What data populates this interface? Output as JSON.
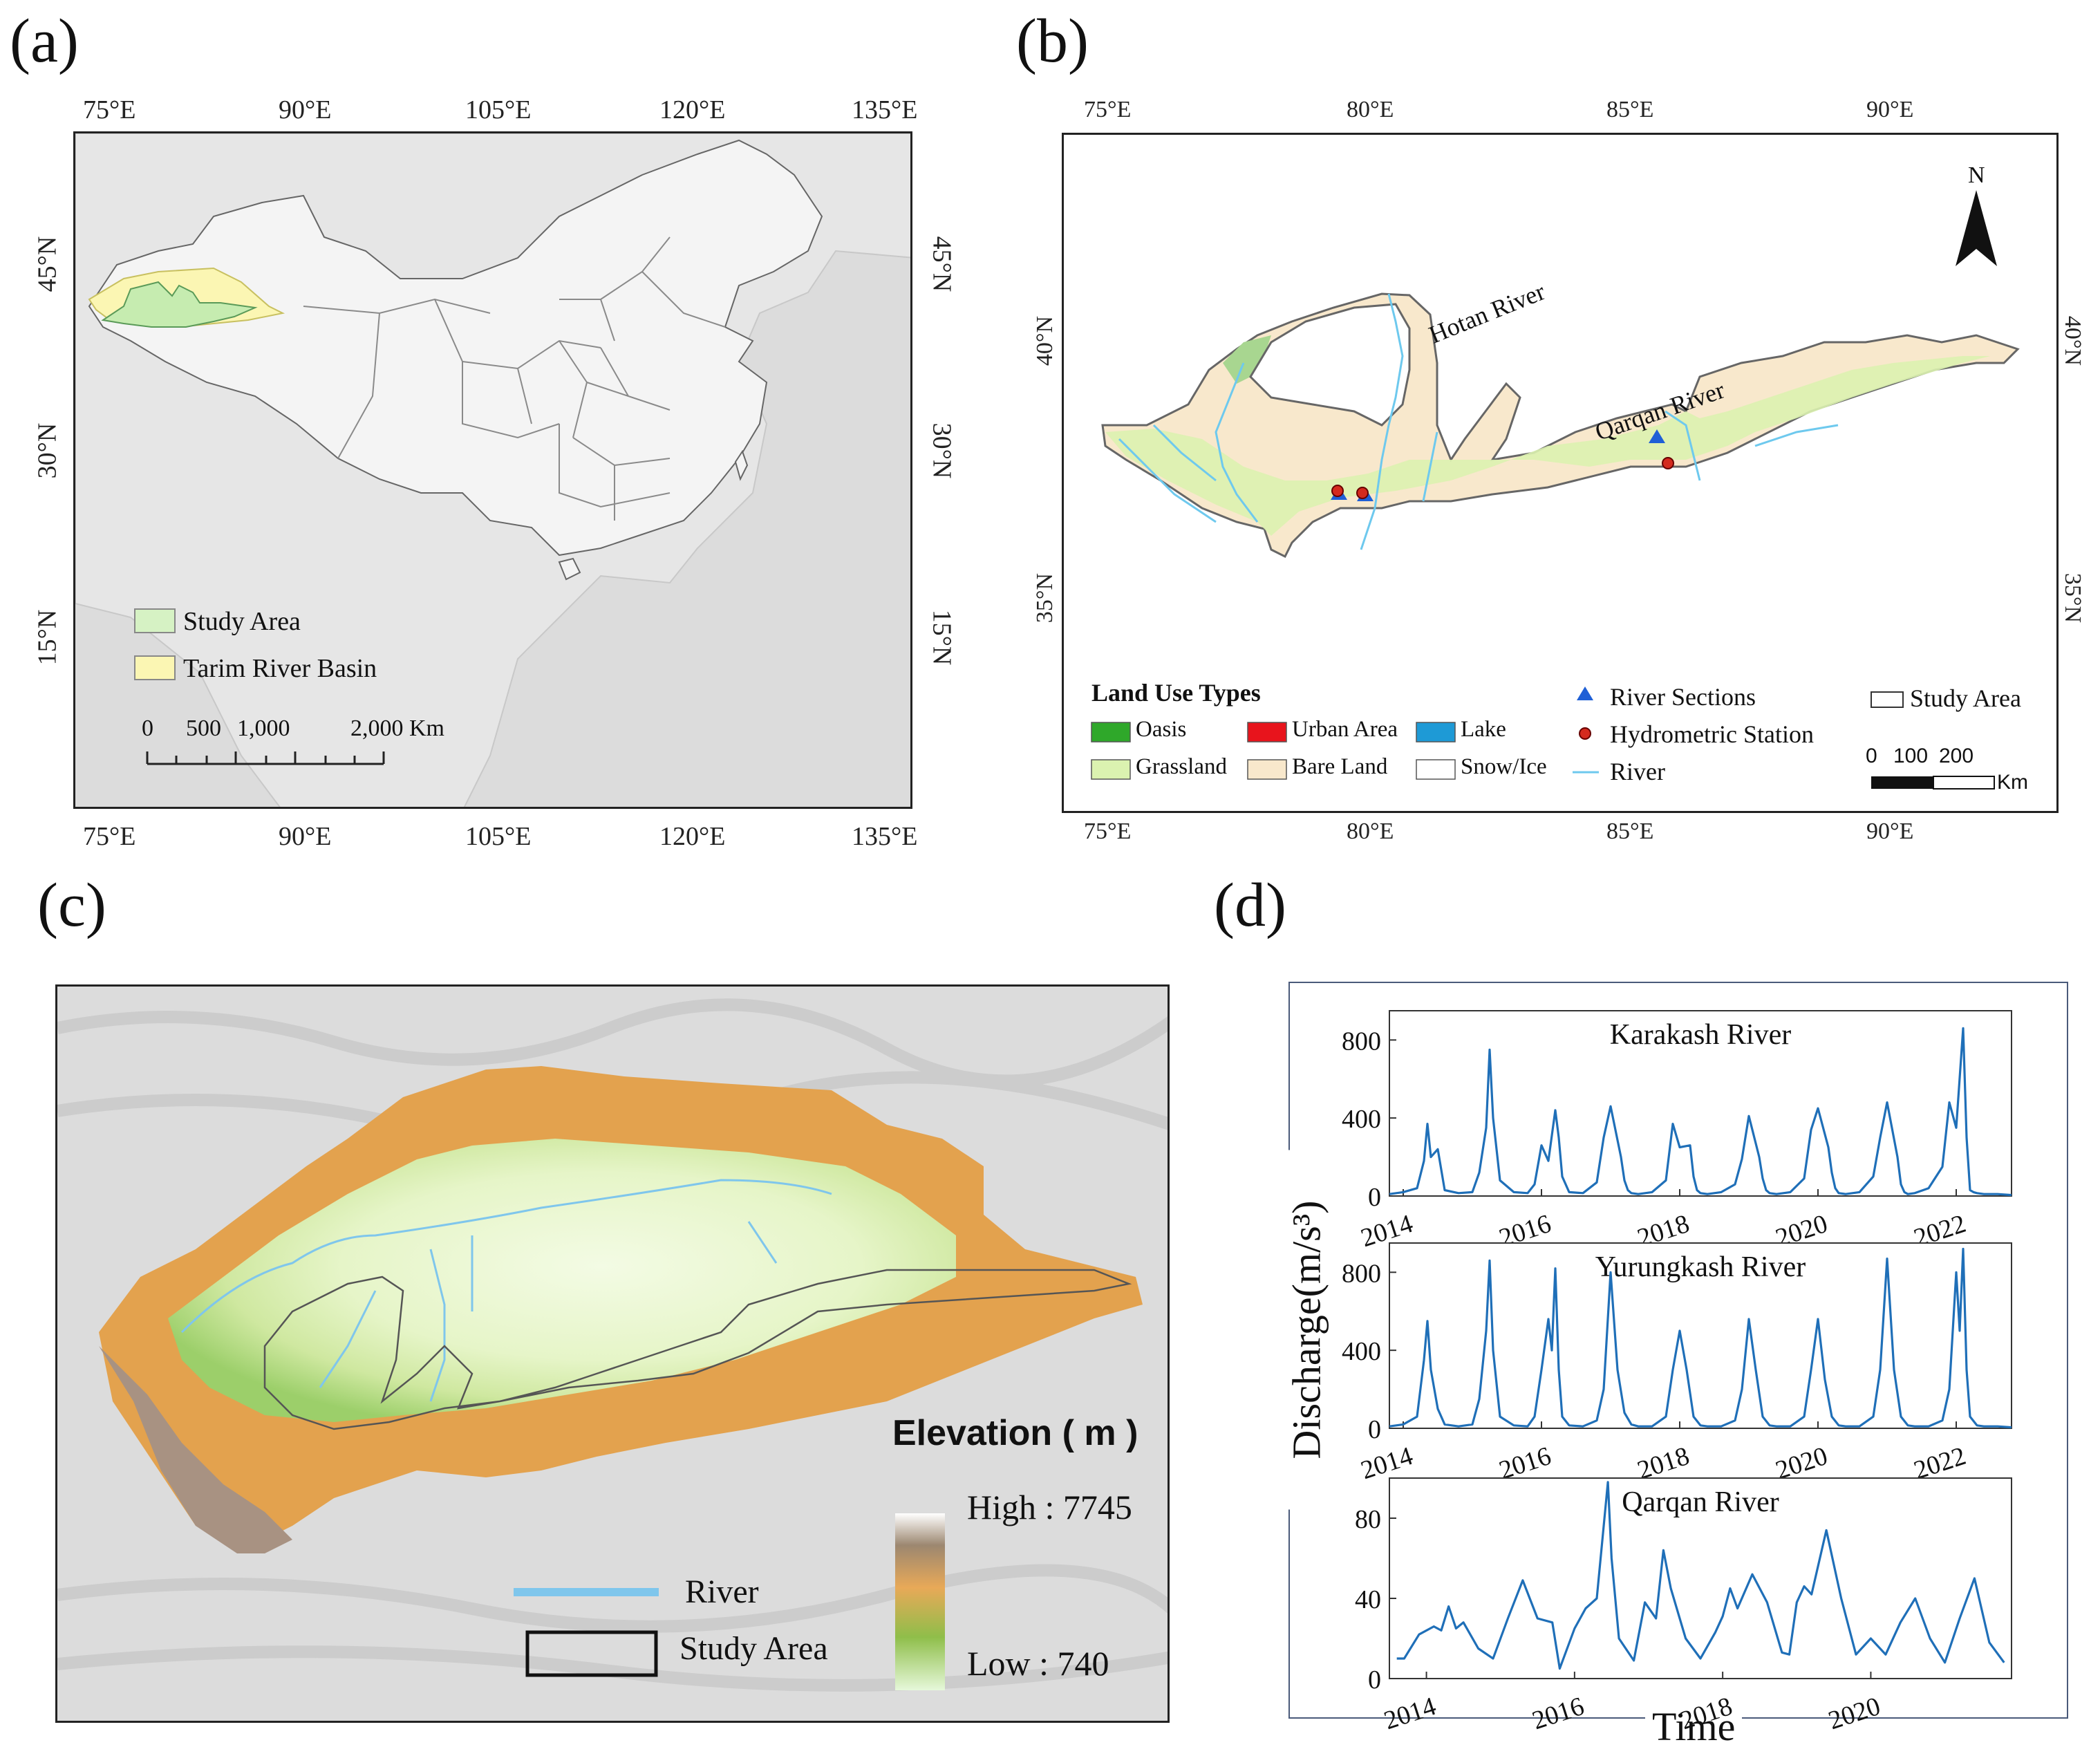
{
  "panels": {
    "a": {
      "label": "(a)",
      "lon_ticks": [
        "75°E",
        "90°E",
        "105°E",
        "120°E",
        "135°E"
      ],
      "lat_ticks": [
        "45°N",
        "30°N",
        "15°N"
      ],
      "legend": {
        "study_area": "Study Area",
        "tarim_basin": "Tarim River Basin"
      },
      "scalebar": {
        "labels": [
          "0",
          "500",
          "1,000",
          "2,000 Km"
        ]
      },
      "colors": {
        "study_area": "#d6f2c4",
        "tarim_basin": "#fbf6b3",
        "ocean": "#dcdcdc",
        "china": "#f2f2f2"
      }
    },
    "b": {
      "label": "(b)",
      "lon_ticks": [
        "75°E",
        "80°E",
        "85°E",
        "90°E"
      ],
      "lat_ticks": [
        "40°N",
        "35°N"
      ],
      "north": "N",
      "river_labels": [
        "Hotan River",
        "Qarqan River"
      ],
      "legend": {
        "title": "Land Use Types",
        "items": [
          {
            "name": "Oasis",
            "color": "#2fa82a"
          },
          {
            "name": "Urban Area",
            "color": "#e8141c"
          },
          {
            "name": "Lake",
            "color": "#1e9ad6"
          },
          {
            "name": "Grassland",
            "color": "#dbf2b0"
          },
          {
            "name": "Bare Land",
            "color": "#f8e8cc"
          },
          {
            "name": "Snow/Ice",
            "color": "#ffffff"
          }
        ],
        "river_sections": "River Sections",
        "hydrometric_station": "Hydrometric Station",
        "river": "River",
        "study_area": "Study Area"
      },
      "scalebar": {
        "labels": [
          "0",
          "100",
          "200"
        ],
        "unit": "Km"
      }
    },
    "c": {
      "label": "(c)",
      "elevation_title": "Elevation ( m )",
      "high": "High : 7745",
      "low": "Low : 740",
      "legend": {
        "river": "River",
        "study_area": "Study Area"
      }
    },
    "d": {
      "label": "(d)",
      "ylabel": "Discharge(m/s³)",
      "xlabel": "Time"
    }
  },
  "chart_data": [
    {
      "type": "line",
      "title": "Karakash River",
      "xlabel": "Time",
      "ylabel": "Discharge(m/s³)",
      "x_ticks": [
        "2014",
        "2016",
        "2018",
        "2020",
        "2022"
      ],
      "y_ticks": [
        0,
        400,
        800
      ],
      "ylim": [
        0,
        950
      ],
      "xlim": [
        2013.8,
        2022.8
      ],
      "series": [
        {
          "name": "Karakash River",
          "color": "#1f6fb8",
          "x": [
            2013.8,
            2014.0,
            2014.2,
            2014.3,
            2014.35,
            2014.4,
            2014.5,
            2014.6,
            2014.8,
            2015.0,
            2015.1,
            2015.2,
            2015.25,
            2015.3,
            2015.4,
            2015.6,
            2015.8,
            2015.9,
            2016.0,
            2016.1,
            2016.2,
            2016.25,
            2016.3,
            2016.4,
            2016.6,
            2016.8,
            2016.9,
            2017.0,
            2017.15,
            2017.2,
            2017.25,
            2017.3,
            2017.4,
            2017.6,
            2017.8,
            2017.9,
            2018.0,
            2018.15,
            2018.2,
            2018.25,
            2018.3,
            2018.4,
            2018.6,
            2018.8,
            2018.9,
            2019.0,
            2019.15,
            2019.2,
            2019.25,
            2019.3,
            2019.4,
            2019.6,
            2019.8,
            2019.9,
            2020.0,
            2020.15,
            2020.2,
            2020.25,
            2020.3,
            2020.4,
            2020.6,
            2020.8,
            2020.9,
            2021.0,
            2021.15,
            2021.2,
            2021.25,
            2021.3,
            2021.4,
            2021.6,
            2021.8,
            2021.9,
            2022.0,
            2022.1,
            2022.15,
            2022.2,
            2022.25,
            2022.3,
            2022.4,
            2022.6,
            2022.8
          ],
          "values": [
            10,
            20,
            40,
            180,
            370,
            200,
            240,
            30,
            15,
            20,
            120,
            350,
            750,
            400,
            80,
            20,
            15,
            60,
            260,
            180,
            440,
            300,
            100,
            20,
            15,
            70,
            300,
            460,
            200,
            80,
            30,
            15,
            10,
            20,
            80,
            370,
            250,
            260,
            100,
            30,
            15,
            10,
            20,
            60,
            190,
            410,
            200,
            90,
            30,
            15,
            10,
            20,
            90,
            340,
            450,
            250,
            120,
            40,
            15,
            10,
            20,
            100,
            300,
            480,
            200,
            60,
            20,
            10,
            15,
            40,
            150,
            480,
            350,
            860,
            300,
            30,
            20,
            15,
            10,
            10,
            5
          ]
        }
      ]
    },
    {
      "type": "line",
      "title": "Yurungkash River",
      "xlabel": "Time",
      "ylabel": "Discharge(m/s³)",
      "x_ticks": [
        "2014",
        "2016",
        "2018",
        "2020",
        "2022"
      ],
      "y_ticks": [
        0,
        400,
        800
      ],
      "ylim": [
        0,
        950
      ],
      "xlim": [
        2013.8,
        2022.8
      ],
      "series": [
        {
          "name": "Yurungkash River",
          "color": "#1f6fb8",
          "x": [
            2013.8,
            2014.0,
            2014.2,
            2014.3,
            2014.35,
            2014.4,
            2014.5,
            2014.6,
            2014.8,
            2015.0,
            2015.1,
            2015.2,
            2015.25,
            2015.3,
            2015.4,
            2015.6,
            2015.8,
            2015.9,
            2016.0,
            2016.1,
            2016.15,
            2016.2,
            2016.25,
            2016.3,
            2016.4,
            2016.6,
            2016.8,
            2016.9,
            2017.0,
            2017.1,
            2017.2,
            2017.3,
            2017.4,
            2017.6,
            2017.8,
            2017.9,
            2018.0,
            2018.1,
            2018.2,
            2018.3,
            2018.4,
            2018.6,
            2018.8,
            2018.9,
            2019.0,
            2019.1,
            2019.2,
            2019.3,
            2019.4,
            2019.6,
            2019.8,
            2019.9,
            2020.0,
            2020.1,
            2020.2,
            2020.3,
            2020.4,
            2020.6,
            2020.8,
            2020.9,
            2021.0,
            2021.1,
            2021.2,
            2021.3,
            2021.4,
            2021.6,
            2021.8,
            2021.9,
            2022.0,
            2022.05,
            2022.1,
            2022.15,
            2022.2,
            2022.3,
            2022.4,
            2022.6,
            2022.8
          ],
          "values": [
            10,
            20,
            60,
            350,
            550,
            300,
            100,
            20,
            10,
            20,
            150,
            500,
            860,
            400,
            60,
            15,
            10,
            60,
            300,
            560,
            400,
            820,
            300,
            60,
            15,
            10,
            40,
            200,
            800,
            300,
            80,
            20,
            10,
            10,
            60,
            300,
            500,
            300,
            60,
            15,
            10,
            10,
            40,
            200,
            560,
            300,
            60,
            15,
            10,
            10,
            60,
            300,
            560,
            250,
            60,
            15,
            10,
            10,
            60,
            300,
            870,
            300,
            60,
            15,
            10,
            10,
            40,
            200,
            800,
            500,
            920,
            300,
            60,
            15,
            10,
            10,
            5
          ]
        }
      ]
    },
    {
      "type": "line",
      "title": "Qarqan River",
      "xlabel": "Time",
      "ylabel": "Discharge(m/s³)",
      "x_ticks": [
        "2014",
        "2016",
        "2018",
        "2020"
      ],
      "y_ticks": [
        0,
        40,
        80
      ],
      "ylim": [
        0,
        100
      ],
      "xlim": [
        2013.5,
        2021.9
      ],
      "series": [
        {
          "name": "Qarqan River",
          "color": "#1f6fb8",
          "x": [
            2013.6,
            2013.7,
            2013.9,
            2014.1,
            2014.2,
            2014.3,
            2014.4,
            2014.5,
            2014.7,
            2014.9,
            2015.1,
            2015.3,
            2015.5,
            2015.7,
            2015.8,
            2016.0,
            2016.15,
            2016.3,
            2016.45,
            2016.5,
            2016.6,
            2016.8,
            2016.95,
            2017.1,
            2017.2,
            2017.3,
            2017.5,
            2017.7,
            2017.9,
            2018.0,
            2018.1,
            2018.2,
            2018.4,
            2018.6,
            2018.8,
            2018.9,
            2019.0,
            2019.1,
            2019.2,
            2019.4,
            2019.6,
            2019.8,
            2020.0,
            2020.2,
            2020.4,
            2020.6,
            2020.8,
            2021.0,
            2021.2,
            2021.4,
            2021.6,
            2021.8
          ],
          "values": [
            10,
            10,
            22,
            26,
            24,
            36,
            25,
            28,
            15,
            10,
            30,
            49,
            30,
            28,
            5,
            25,
            35,
            40,
            98,
            60,
            20,
            9,
            38,
            30,
            64,
            45,
            20,
            10,
            23,
            31,
            45,
            35,
            52,
            38,
            13,
            12,
            38,
            46,
            42,
            74,
            40,
            12,
            20,
            12,
            28,
            40,
            20,
            8,
            30,
            50,
            18,
            8
          ]
        }
      ]
    }
  ]
}
